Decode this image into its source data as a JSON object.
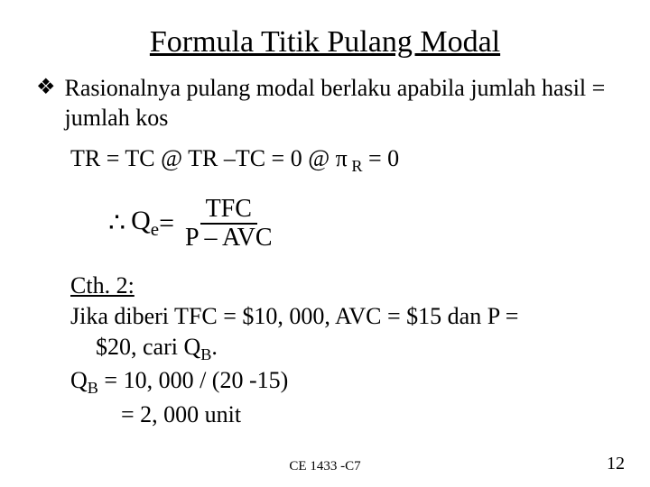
{
  "title": "Formula Titik Pulang Modal",
  "bullet": {
    "mark": "❖",
    "text": "Rasionalnya pulang modal berlaku apabila jumlah hasil = jumlah kos"
  },
  "equation_line": {
    "prefix": "TR = TC @ TR –TC = 0 @ ",
    "pi": "π",
    "r_sub": " R",
    "suffix": " = 0"
  },
  "formula": {
    "therefore": "∴",
    "q": "Q",
    "q_sub": "e",
    "eq": " = ",
    "num": "TFC",
    "den": "P – AVC"
  },
  "example": {
    "heading": "Cth. 2:",
    "line1": "Jika diberi TFC = $10, 000, AVC = $15 dan P =",
    "line1b": "$20, cari Q",
    "line1b_sub": "B",
    "line1b_tail": ".",
    "line2_pre": "Q",
    "line2_sub": "B",
    "line2_post": " = 10, 000 / (20 -15)",
    "line3": "= 2, 000 unit"
  },
  "footer_code": "CE 1433 -C7",
  "page_number": "12"
}
